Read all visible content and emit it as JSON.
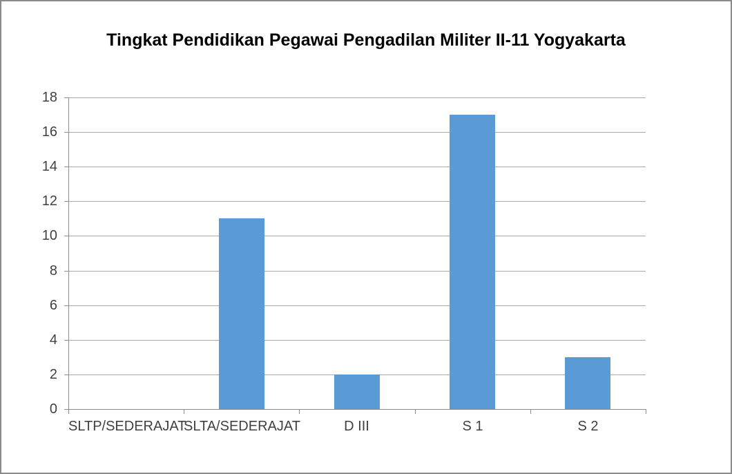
{
  "chart_data": {
    "type": "bar",
    "title": "Tingkat Pendidikan Pegawai Pengadilan Militer II-11 Yogyakarta",
    "categories": [
      "SLTP/SEDERAJAT",
      "SLTA/SEDERAJAT",
      "D III",
      "S 1",
      "S 2"
    ],
    "values": [
      0,
      11,
      2,
      17,
      3
    ],
    "xlabel": "",
    "ylabel": "",
    "ylim": [
      0,
      18
    ],
    "ytick_step": 2,
    "yticks": [
      0,
      2,
      4,
      6,
      8,
      10,
      12,
      14,
      16,
      18
    ],
    "grid": true,
    "legend": false,
    "colors": {
      "bar": "#5B9BD5",
      "gridline": "#a8a8a8",
      "axis": "#8c8c8c",
      "tick_label": "#404040",
      "title": "#000000",
      "background": "#ffffff",
      "window_border": "#8a8a8a"
    }
  }
}
